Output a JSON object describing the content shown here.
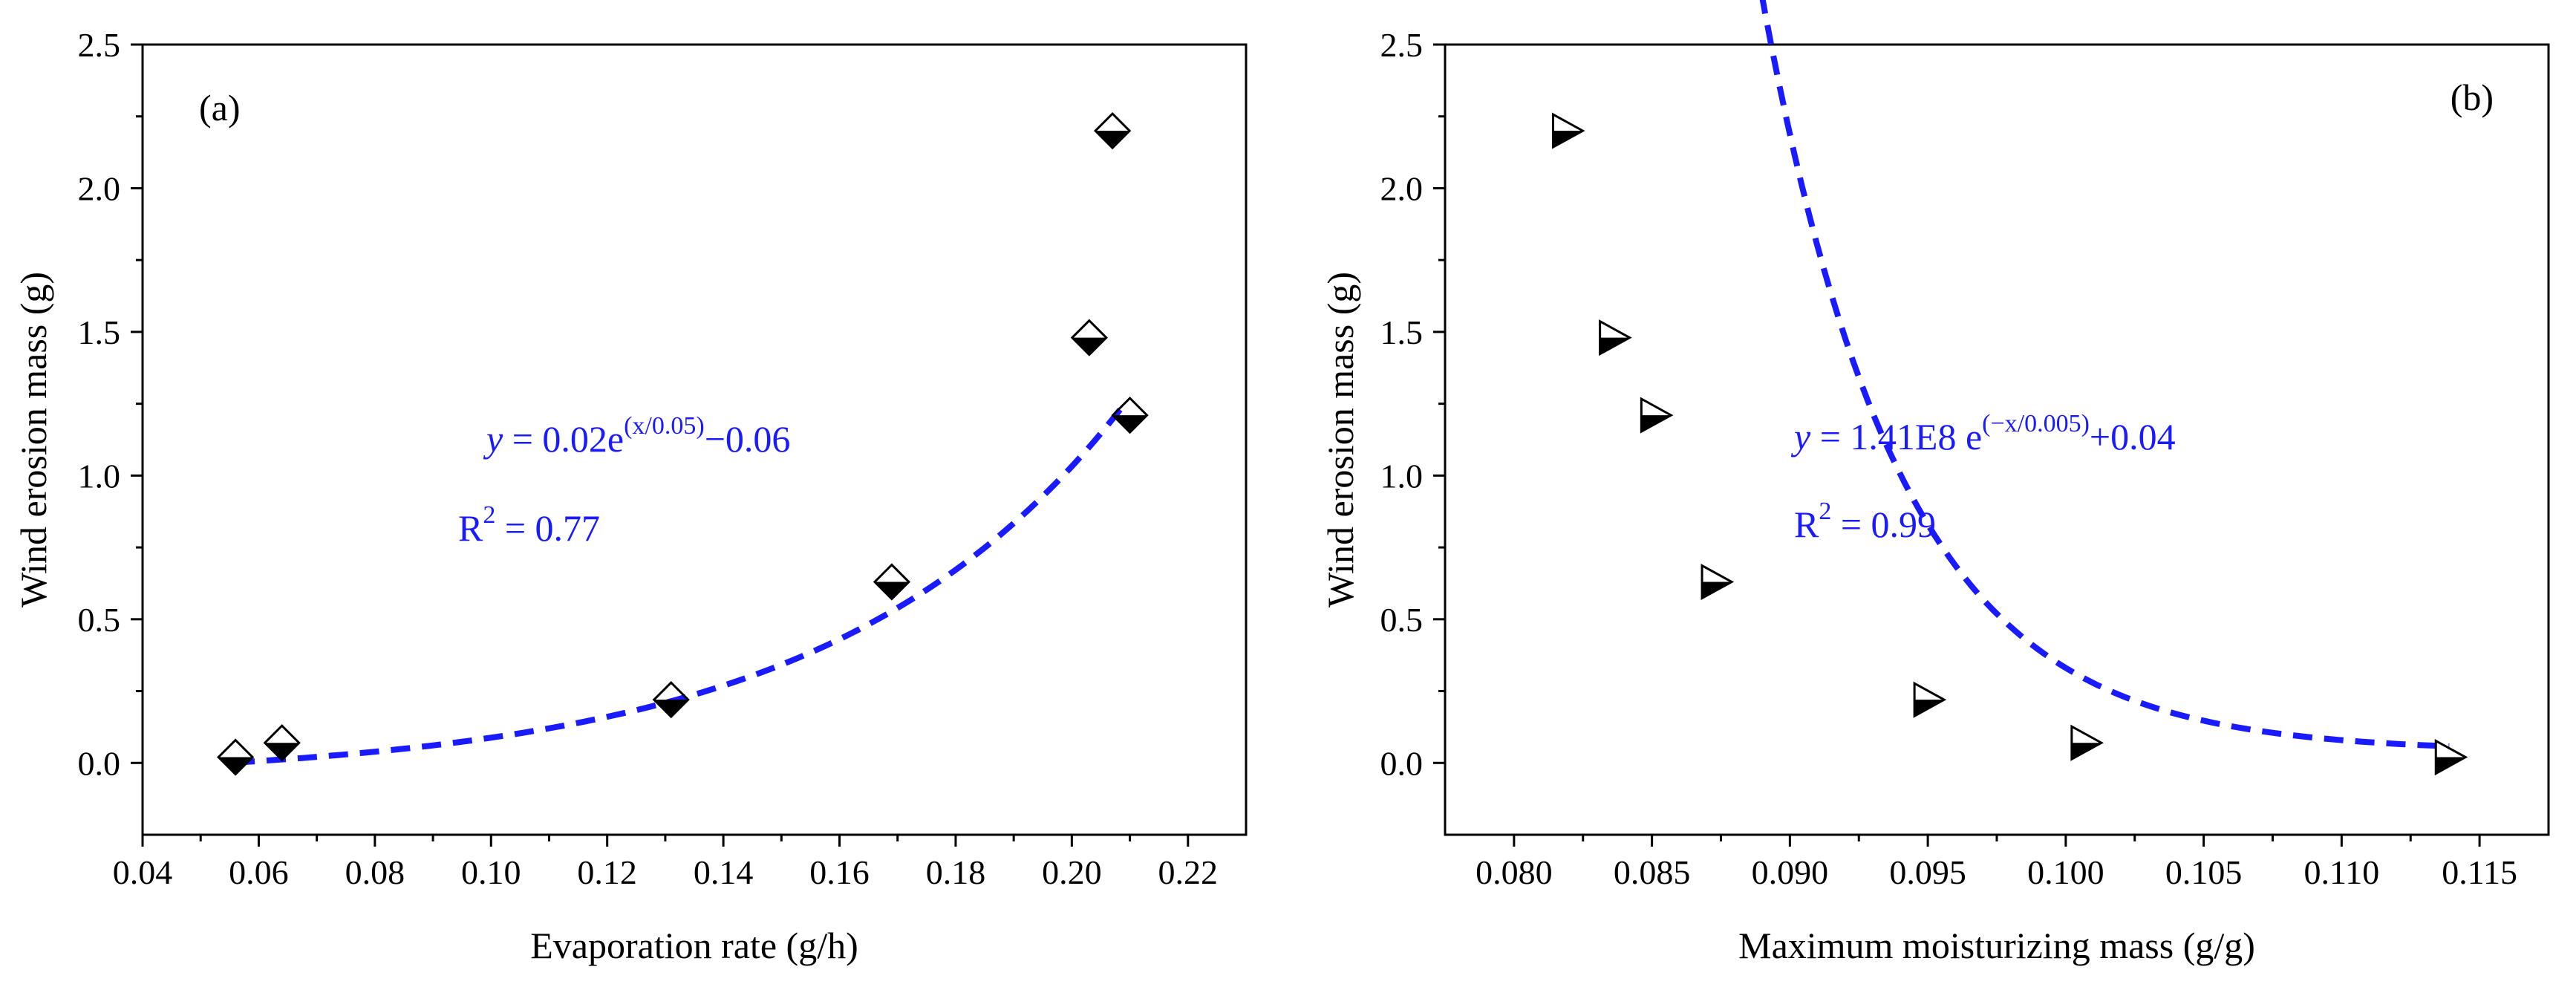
{
  "chart_data": [
    {
      "type": "scatter",
      "panel_label": "(a)",
      "xlabel": "Evaporation rate (g/h)",
      "ylabel": "Wind erosion mass (g)",
      "xlim": [
        0.04,
        0.23
      ],
      "ylim": [
        -0.25,
        2.5
      ],
      "x_ticks": [
        "0.04",
        "0.06",
        "0.08",
        "0.10",
        "0.12",
        "0.14",
        "0.16",
        "0.18",
        "0.20",
        "0.22"
      ],
      "y_ticks": [
        "0.0",
        "0.5",
        "1.0",
        "1.5",
        "2.0",
        "2.5"
      ],
      "marker": "diamond-half-filled",
      "points": [
        {
          "x": 0.056,
          "y": 0.02
        },
        {
          "x": 0.064,
          "y": 0.07
        },
        {
          "x": 0.131,
          "y": 0.22
        },
        {
          "x": 0.169,
          "y": 0.63
        },
        {
          "x": 0.203,
          "y": 1.48
        },
        {
          "x": 0.207,
          "y": 2.2
        },
        {
          "x": 0.21,
          "y": 1.21
        }
      ],
      "fit": {
        "model": "y = 0.02*exp(x/0.05) - 0.06",
        "a": 0.02,
        "t": 0.05,
        "c": -0.06,
        "x_range": [
          0.056,
          0.209
        ],
        "color": "#1a1aff",
        "equation_parts": {
          "y": "y",
          "main": " = 0.02e",
          "exp": "(x/0.05)",
          "tail": "−0.06"
        },
        "r2_parts": {
          "R": "R",
          "exp": "2",
          "val": " = 0.77"
        }
      }
    },
    {
      "type": "scatter",
      "panel_label": "(b)",
      "xlabel": "Maximum moisturizing mass (g/g)",
      "ylabel": "Wind erosion mass (g)",
      "xlim": [
        0.0775,
        0.1175
      ],
      "ylim": [
        -0.25,
        2.5
      ],
      "x_ticks": [
        "0.080",
        "0.085",
        "0.090",
        "0.095",
        "0.100",
        "0.105",
        "0.110",
        "0.115"
      ],
      "y_ticks": [
        "0.0",
        "0.5",
        "1.0",
        "1.5",
        "2.0",
        "2.5"
      ],
      "marker": "triangle-right-half-filled",
      "points": [
        {
          "x": 0.0819,
          "y": 2.2
        },
        {
          "x": 0.0836,
          "y": 1.48
        },
        {
          "x": 0.0851,
          "y": 1.21
        },
        {
          "x": 0.0873,
          "y": 0.63
        },
        {
          "x": 0.095,
          "y": 0.22
        },
        {
          "x": 0.1007,
          "y": 0.07
        },
        {
          "x": 0.1139,
          "y": 0.02
        }
      ],
      "fit": {
        "model": "y = 1.41E8*exp(-x/0.005) + 0.04",
        "a": 141000000.0,
        "t": 0.005,
        "c": 0.04,
        "x_range": [
          0.0819,
          0.1139
        ],
        "color": "#1a1aff",
        "equation_parts": {
          "y": "y",
          "main": " = 1.41E8 e",
          "exp": "(−x/0.005)",
          "tail": "+0.04"
        },
        "r2_parts": {
          "R": "R",
          "exp": "2",
          "val": " = 0.99"
        }
      }
    }
  ]
}
